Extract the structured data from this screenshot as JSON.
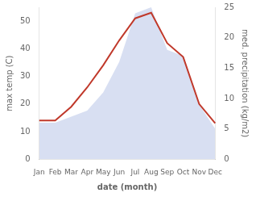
{
  "chart_data": {
    "type": "line",
    "xlabel": "date (month)",
    "ylabel": "max temp (C)",
    "y2label": "med. precipitation (kg/m2)",
    "categories": [
      "Jan",
      "Feb",
      "Mar",
      "Apr",
      "May",
      "Jun",
      "Jul",
      "Aug",
      "Sep",
      "Oct",
      "Nov",
      "Dec"
    ],
    "series": [
      {
        "type": "area",
        "color": "#b8c4e8",
        "axis": "y2",
        "values": [
          6,
          6,
          7,
          8,
          11,
          16,
          24,
          25,
          18,
          17,
          9,
          5
        ]
      },
      {
        "type": "line",
        "color": "#c0392b",
        "values": [
          14,
          14,
          19,
          26,
          34,
          43,
          51,
          53,
          42,
          37,
          20,
          13
        ]
      }
    ],
    "ylim": [
      0,
      55
    ],
    "yticks": [
      0,
      10,
      20,
      30,
      40,
      50
    ],
    "y2lim": [
      0,
      25
    ],
    "y2ticks": [
      0,
      5,
      10,
      15,
      20,
      25
    ],
    "grid": false
  }
}
